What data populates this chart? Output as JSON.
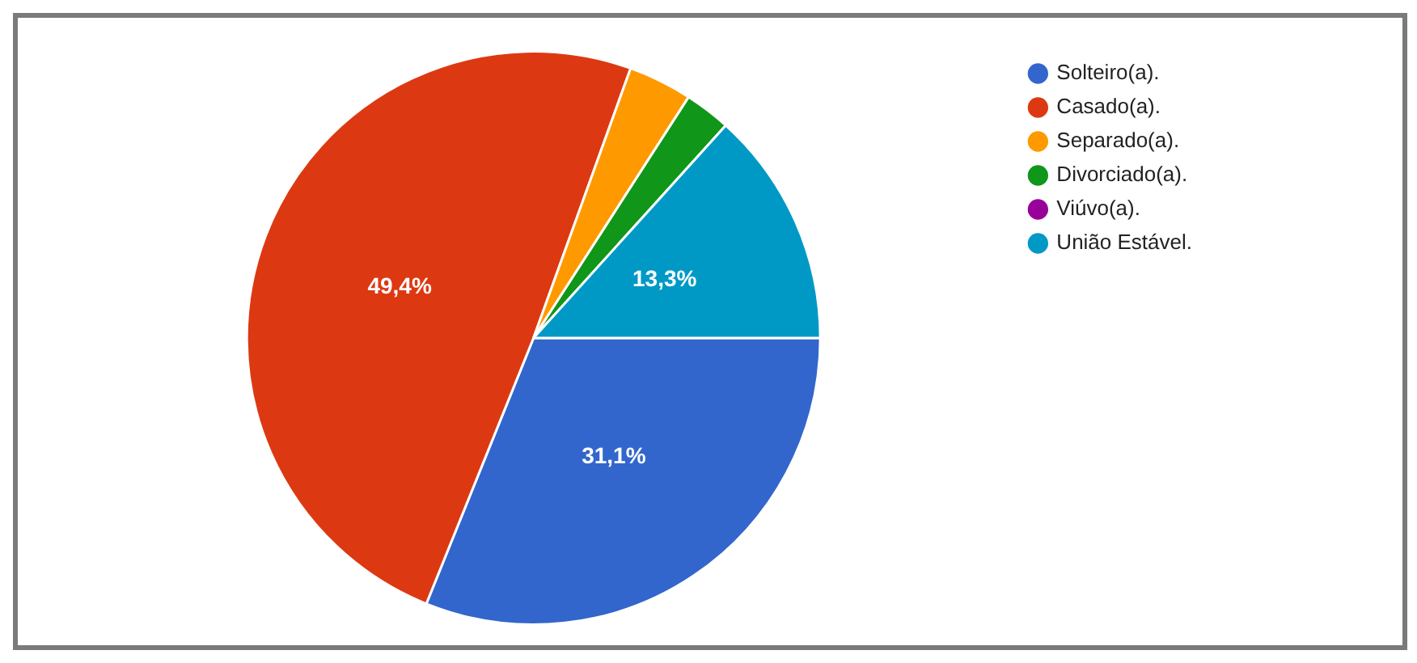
{
  "chart_data": {
    "type": "pie",
    "categories": [
      "Solteiro(a).",
      "Casado(a).",
      "Separado(a).",
      "Divorciado(a).",
      "Viúvo(a).",
      "União Estável."
    ],
    "values": [
      31.1,
      49.4,
      3.6,
      2.6,
      0,
      13.3
    ],
    "colors": [
      "#3366cc",
      "#dc3912",
      "#ff9900",
      "#109618",
      "#990099",
      "#0099c6"
    ],
    "value_labels": [
      "31,1%",
      "49,4%",
      null,
      null,
      null,
      "13,3%"
    ],
    "legend": "top right"
  }
}
